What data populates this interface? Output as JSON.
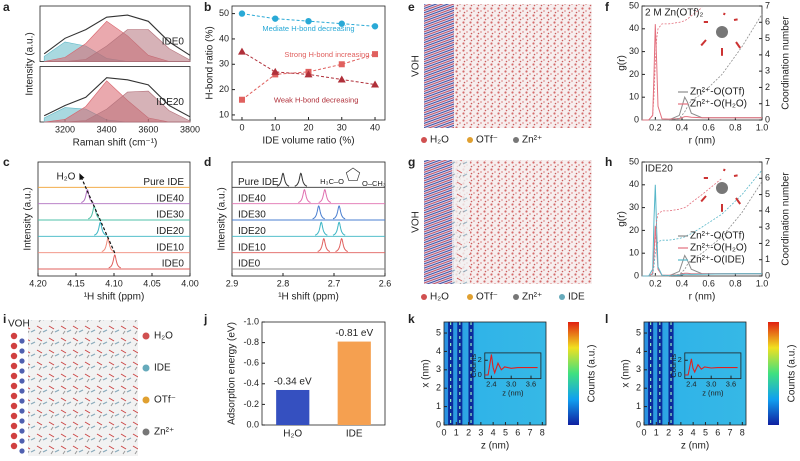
{
  "chart_data": [
    {
      "label": "a",
      "type": "spectra",
      "x": [
        3100,
        3200,
        3300,
        3400,
        3500,
        3600,
        3700,
        3800
      ],
      "xlim": [
        3080,
        3800
      ],
      "xticks": [
        3200,
        3400,
        3600,
        3800
      ],
      "ylim": [
        0,
        1
      ],
      "xlabel": "Raman shift (cm⁻¹)",
      "ylabel": "Intensity (a.u.)",
      "subplots": [
        {
          "name": "IDE0",
          "series": [
            {
              "color": "#63b9c7",
              "filled": true,
              "values": [
                0.1,
                0.38,
                0.3,
                0.06,
                0,
                0,
                0,
                0
              ]
            },
            {
              "color": "#d9636b",
              "filled": true,
              "values": [
                0,
                0.08,
                0.35,
                0.78,
                0.5,
                0.12,
                0,
                0
              ]
            },
            {
              "color": "#b5737c",
              "filled": true,
              "values": [
                0,
                0,
                0.04,
                0.3,
                0.62,
                0.62,
                0.25,
                0.03
              ]
            },
            {
              "color": "#333333",
              "filled": false,
              "values": [
                0.15,
                0.45,
                0.62,
                0.86,
                0.9,
                0.78,
                0.38,
                0.12
              ]
            }
          ]
        },
        {
          "name": "IDE20",
          "series": [
            {
              "color": "#63b9c7",
              "filled": true,
              "values": [
                0.08,
                0.28,
                0.25,
                0.04,
                0,
                0,
                0,
                0
              ]
            },
            {
              "color": "#d9636b",
              "filled": true,
              "values": [
                0,
                0.05,
                0.3,
                0.8,
                0.42,
                0.08,
                0,
                0
              ]
            },
            {
              "color": "#b5737c",
              "filled": true,
              "values": [
                0,
                0,
                0.03,
                0.25,
                0.58,
                0.6,
                0.22,
                0.02
              ]
            },
            {
              "color": "#333333",
              "filled": false,
              "values": [
                0.12,
                0.32,
                0.48,
                0.86,
                0.82,
                0.72,
                0.32,
                0.1
              ]
            }
          ]
        }
      ]
    },
    {
      "label": "b",
      "type": "line",
      "x": [
        0,
        10,
        20,
        30,
        40
      ],
      "xlim": [
        -3,
        43
      ],
      "xticks": [
        0,
        10,
        20,
        30,
        40
      ],
      "ylim": [
        8,
        53
      ],
      "yticks": [
        10,
        20,
        30,
        40,
        50
      ],
      "xlabel": "IDE volume ratio (%)",
      "ylabel": "H-bond ratio (%)",
      "series": [
        {
          "name": "Mediate H-bond decreasing",
          "color": "#29a9d6",
          "marker": "circle",
          "values": [
            50,
            48,
            47,
            46,
            45
          ]
        },
        {
          "name": "Strong H-bond increasing",
          "color": "#e0605e",
          "marker": "square",
          "values": [
            16,
            26,
            27,
            30,
            34
          ]
        },
        {
          "name": "Weak H-bond decreasing",
          "color": "#b0303a",
          "marker": "triangle",
          "values": [
            35,
            27,
            26,
            24,
            22
          ]
        }
      ]
    },
    {
      "label": "c",
      "type": "stacked",
      "xlim": [
        4.2,
        4.0
      ],
      "xticks": [
        {
          "value": 4.2,
          "label": "4.20"
        },
        4.15,
        {
          "value": 4.1,
          "label": "4.10"
        },
        4.05,
        {
          "value": 4.0,
          "label": "4.00"
        }
      ],
      "xlabel": "¹H shift (ppm)",
      "ylabel": "Intensity (a.u.)",
      "annotation": "H₂O",
      "series": [
        {
          "name": "IDE0",
          "color": "#e0605e",
          "peaks": [
            4.099
          ]
        },
        {
          "name": "IDE10",
          "color": "#f08a7a",
          "peaks": [
            4.108
          ]
        },
        {
          "name": "IDE20",
          "color": "#3bb5c4",
          "peaks": [
            4.118
          ]
        },
        {
          "name": "IDE30",
          "color": "#4fc1a8",
          "peaks": [
            4.126
          ]
        },
        {
          "name": "IDE40",
          "color": "#b070c0",
          "peaks": [
            4.135
          ]
        },
        {
          "name": "Pure IDE",
          "color": "#f0a030",
          "peaks": []
        }
      ]
    },
    {
      "label": "d",
      "type": "stacked",
      "xlim": [
        2.9,
        2.6
      ],
      "xticks": [
        2.9,
        2.8,
        2.7,
        2.6
      ],
      "xlabel": "¹H shift (ppm)",
      "ylabel": "Intensity (a.u.)",
      "structure_labels": [
        "H₃C–O",
        "O–CH₃"
      ],
      "series": [
        {
          "name": "IDE0",
          "color": "#888888",
          "peaks": []
        },
        {
          "name": "IDE10",
          "color": "#e0605e",
          "peaks": [
            2.72,
            2.685
          ]
        },
        {
          "name": "IDE20",
          "color": "#3bb5c4",
          "peaks": [
            2.725,
            2.69
          ]
        },
        {
          "name": "IDE30",
          "color": "#4a7fd0",
          "peaks": [
            2.73,
            2.69
          ]
        },
        {
          "name": "IDE40",
          "color": "#e070b0",
          "peaks": [
            2.758,
            2.718
          ]
        },
        {
          "name": "Pure IDE",
          "color": "#333333",
          "peaks": [
            2.8,
            2.765
          ]
        }
      ]
    },
    {
      "label": "f",
      "type": "rdf",
      "title": "2 M Zn(OTf)₂",
      "x": [
        0.1,
        0.15,
        0.18,
        0.19,
        0.2,
        0.21,
        0.22,
        0.25,
        0.3,
        0.38,
        0.42,
        0.44,
        0.47,
        0.55,
        0.7,
        0.85,
        1.0
      ],
      "xlim": [
        0.1,
        1.0
      ],
      "xticks": [
        0.2,
        0.4,
        0.6,
        0.8,
        {
          "value": 1.0,
          "label": "1.0"
        }
      ],
      "ylim": [
        0,
        50
      ],
      "yticks": [
        0,
        10,
        20,
        30,
        40,
        50
      ],
      "y2lim": [
        0,
        7
      ],
      "y2ticks": [
        0,
        1,
        2,
        3,
        4,
        5,
        6,
        7
      ],
      "xlabel": "r (nm)",
      "ylabel": "g(r)",
      "y2label": "Coordination number",
      "series": [
        {
          "name": "Zn²⁺-O(OTf)",
          "color": "#8c8c8c",
          "values": [
            0,
            0,
            0,
            0,
            0,
            0,
            0,
            0,
            0,
            2,
            10,
            8,
            3,
            1,
            1,
            1,
            1
          ]
        },
        {
          "name": "Zn²⁺-O(H₂O)",
          "color": "#e3707e",
          "values": [
            0,
            0,
            2,
            20,
            42,
            25,
            6,
            0.5,
            0.4,
            0.6,
            1.5,
            1.5,
            1.2,
            1,
            1,
            1,
            1
          ]
        },
        {
          "color": "#8c8c8c",
          "axis": "y2",
          "dash": true,
          "values": [
            0,
            0,
            0,
            0,
            0,
            0,
            0,
            0,
            0,
            0.1,
            0.5,
            0.8,
            1.2,
            1.6,
            2.8,
            4.5,
            6.5
          ]
        },
        {
          "color": "#e3707e",
          "axis": "y2",
          "dash": true,
          "values": [
            0,
            0,
            0.3,
            1.5,
            3.5,
            5,
            5.6,
            5.9,
            5.9,
            6,
            6.1,
            6.2,
            6.4,
            6.9,
            null,
            null,
            null
          ]
        }
      ]
    },
    {
      "label": "h",
      "type": "rdf",
      "title": "IDE20",
      "x": [
        0.1,
        0.15,
        0.18,
        0.19,
        0.2,
        0.21,
        0.22,
        0.25,
        0.3,
        0.38,
        0.42,
        0.44,
        0.47,
        0.55,
        0.7,
        0.85,
        1.0
      ],
      "xlim": [
        0.1,
        1.0
      ],
      "xticks": [
        0.2,
        0.4,
        0.6,
        0.8,
        {
          "value": 1.0,
          "label": "1.0"
        }
      ],
      "ylim": [
        0,
        50
      ],
      "yticks": [
        0,
        10,
        20,
        30,
        40,
        50
      ],
      "y2lim": [
        0,
        7
      ],
      "y2ticks": [
        0,
        1,
        2,
        3,
        4,
        5,
        6,
        7
      ],
      "xlabel": "r (nm)",
      "ylabel": "g(r)",
      "y2label": "Coordination number",
      "series": [
        {
          "name": "Zn²⁺-O(OTf)",
          "color": "#8c8c8c",
          "values": [
            0,
            0,
            0,
            0,
            0,
            0,
            0,
            0,
            0,
            2,
            9,
            7,
            3,
            1,
            1,
            1,
            1
          ]
        },
        {
          "name": "Zn²⁺-O(H₂O)",
          "color": "#e3707e",
          "values": [
            0,
            0,
            1,
            10,
            22,
            12,
            3,
            0.4,
            0.3,
            0.5,
            1.2,
            1.2,
            1,
            1,
            1,
            1,
            1
          ]
        },
        {
          "name": "Zn²⁺-O(IDE)",
          "color": "#58b7c9",
          "values": [
            0,
            0,
            3,
            25,
            40,
            20,
            4,
            0.3,
            0.2,
            0.3,
            0.8,
            0.8,
            0.7,
            0.8,
            0.9,
            1,
            1
          ]
        },
        {
          "color": "#8c8c8c",
          "axis": "y2",
          "dash": true,
          "values": [
            0,
            0,
            0,
            0,
            0,
            0,
            0,
            0,
            0,
            0.1,
            0.4,
            0.7,
            1,
            1.4,
            2.4,
            3.9,
            5.8
          ]
        },
        {
          "color": "#e3707e",
          "axis": "y2",
          "dash": true,
          "values": [
            0,
            0,
            0.2,
            1,
            2.5,
            3.4,
            3.8,
            4,
            4,
            4.1,
            4.2,
            4.3,
            4.5,
            5,
            6,
            null,
            null
          ]
        },
        {
          "color": "#58b7c9",
          "axis": "y2",
          "dash": true,
          "values": [
            0,
            0,
            0.1,
            0.6,
            1.4,
            1.9,
            2.1,
            2.2,
            2.2,
            2.3,
            2.4,
            2.5,
            2.6,
            3,
            3.8,
            5,
            6.5
          ]
        }
      ]
    },
    {
      "label": "j",
      "type": "bar",
      "categories": [
        "H₂O",
        "IDE"
      ],
      "values": [
        -0.34,
        -0.81
      ],
      "value_labels": [
        "-0.34 eV",
        "-0.81 eV"
      ],
      "colors": [
        "#3550c0",
        "#f5a050"
      ],
      "ylim": [
        0,
        -1.0
      ],
      "yticks": [
        {
          "value": 0,
          "label": "0.0"
        },
        -0.2,
        -0.4,
        -0.6,
        -0.8,
        {
          "value": -1.0,
          "label": "-1.0"
        }
      ],
      "ylabel": "Adsorption energy (eV)"
    },
    {
      "label": "k",
      "type": "heatmap",
      "xlim": [
        0,
        8.3
      ],
      "xticks": [
        0,
        1,
        2,
        3,
        4,
        5,
        6,
        7,
        8
      ],
      "ylim": [
        0,
        5.6
      ],
      "yticks": [
        0,
        1,
        2,
        3,
        4,
        5
      ],
      "xlabel": "z (nm)",
      "ylabel": "x (nm)",
      "colorbar_label": "Counts (a.u.)",
      "inset": {
        "x": [
          2.2,
          2.3,
          2.4,
          2.45,
          2.5,
          2.6,
          2.7,
          2.8,
          3.0,
          3.2,
          3.4,
          3.6,
          3.8
        ],
        "values": [
          0,
          0,
          2.8,
          1,
          0.3,
          1.6,
          0.7,
          1.1,
          0.9,
          1,
          1,
          1,
          1
        ],
        "color": "#e02020",
        "xlim": [
          2.2,
          3.9
        ],
        "ylim": [
          -0.5,
          3
        ],
        "xticks": [
          2.4,
          {
            "value": 3,
            "label": "3.0"
          },
          3.6
        ],
        "yticks": [
          0,
          2
        ],
        "xlabel": "z (nm)",
        "ylabel": "Counts"
      }
    },
    {
      "label": "l",
      "type": "heatmap",
      "xlim": [
        0,
        8.3
      ],
      "xticks": [
        0,
        1,
        2,
        3,
        4,
        5,
        6,
        7,
        8
      ],
      "ylim": [
        0,
        5.6
      ],
      "yticks": [
        0,
        1,
        2,
        3,
        4,
        5
      ],
      "xlabel": "z (nm)",
      "ylabel": "x (nm)",
      "colorbar_label": "Counts (a.u.)",
      "inset": {
        "x": [
          2.2,
          2.3,
          2.4,
          2.45,
          2.5,
          2.6,
          2.7,
          2.8,
          3.0,
          3.2,
          3.4,
          3.6,
          3.8
        ],
        "values": [
          0,
          0,
          2.2,
          0.9,
          0.4,
          1.4,
          0.8,
          1.1,
          0.95,
          1,
          1,
          1,
          1
        ],
        "color": "#e02020",
        "xlim": [
          2.2,
          3.9
        ],
        "ylim": [
          -0.5,
          3
        ],
        "xticks": [
          2.4,
          {
            "value": 3,
            "label": "3.0"
          },
          3.6
        ],
        "yticks": [
          0,
          2
        ],
        "xlabel": "z (nm)",
        "ylabel": "Counts"
      }
    }
  ],
  "images": [
    {
      "label": "e",
      "surface": "VOH",
      "legend": [
        "H₂O",
        "OTf⁻",
        "Zn²⁺"
      ]
    },
    {
      "label": "g",
      "surface": "VOH",
      "legend": [
        "H₂O",
        "OTf⁻",
        "Zn²⁺",
        "IDE"
      ]
    },
    {
      "label": "i",
      "surface": "VOH",
      "legend": [
        "H₂O",
        "IDE",
        "OTf⁻",
        "Zn²⁺"
      ]
    }
  ]
}
